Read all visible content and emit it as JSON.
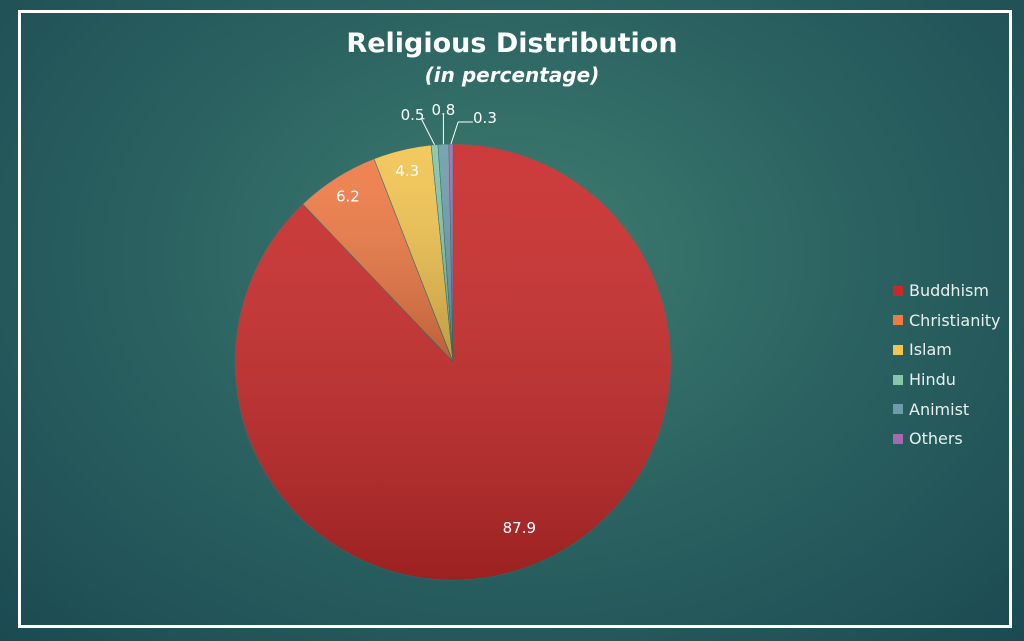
{
  "chart_data": {
    "type": "pie",
    "title": "Religious Distribution",
    "subtitle": "(in percentage)",
    "categories": [
      "Buddhism",
      "Christianity",
      "Islam",
      "Hindu",
      "Animist",
      "Others"
    ],
    "values": [
      87.9,
      6.2,
      4.3,
      0.5,
      0.8,
      0.3
    ],
    "colors": [
      "#c82a2a",
      "#ee7a45",
      "#f2c451",
      "#84c6a8",
      "#6f9cac",
      "#a46ab0"
    ],
    "start_angle": "top, clockwise",
    "legend_position": "right"
  }
}
